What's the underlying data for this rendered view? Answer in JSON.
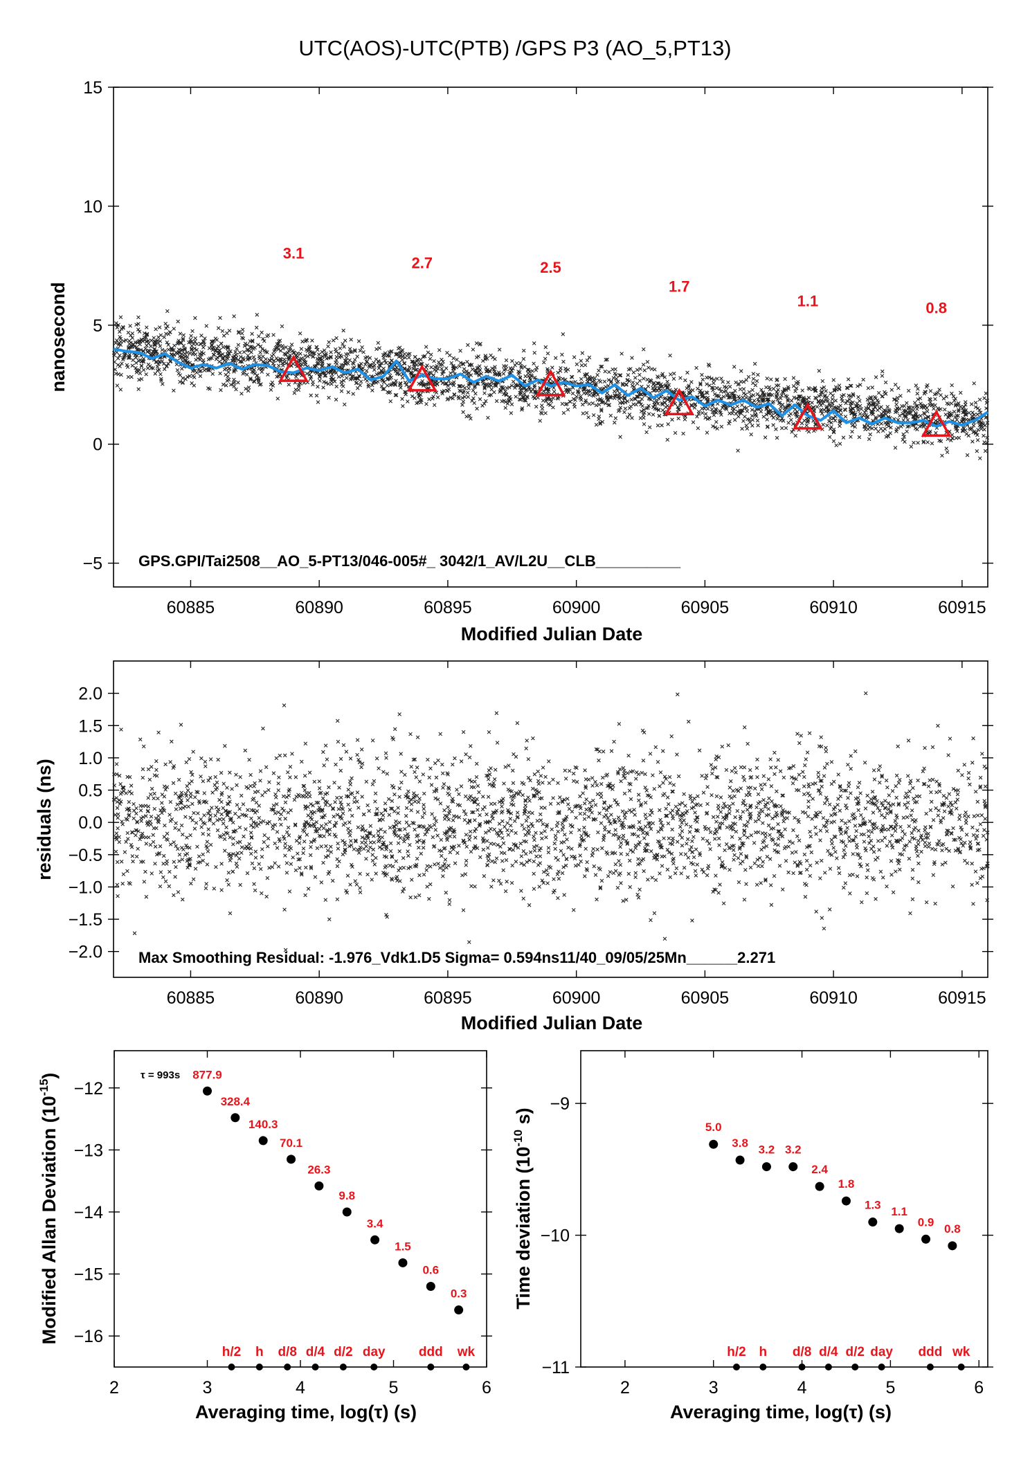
{
  "title": "UTC(AOS)-UTC(PTB)  /GPS  P3  (AO_5,PT13)",
  "chart_data": [
    {
      "type": "scatter",
      "panel": "clock-difference",
      "xlabel": "Modified Julian Date",
      "ylabel": "nanosecond",
      "xlim": [
        60882,
        60916
      ],
      "ylim": [
        -6,
        15
      ],
      "xticks": [
        60885,
        60890,
        60895,
        60900,
        60905,
        60910,
        60915
      ],
      "yticks": [
        -5,
        0,
        5,
        10,
        15
      ],
      "annotation": "GPS.GPI/Tai2508__AO_5-PT13/046-005#_  3042/1_AV/L2U__CLB__________",
      "raw_points": {
        "name": "",
        "x_range": [
          60882,
          60916
        ],
        "start": 4.0,
        "end": 0.9,
        "spread": 0.6,
        "points_per_day": 90
      },
      "smoothed_line": {
        "name": "",
        "color": "#1e90e6",
        "x": [
          60882.0,
          60882.5,
          60883.0,
          60883.5,
          60884.0,
          60884.5,
          60885.0,
          60885.5,
          60886.0,
          60886.5,
          60887.0,
          60887.5,
          60888.0,
          60888.5,
          60889.0,
          60889.5,
          60890.0,
          60890.5,
          60891.0,
          60891.5,
          60892.0,
          60892.5,
          60893.0,
          60893.5,
          60894.0,
          60894.5,
          60895.0,
          60895.5,
          60896.0,
          60896.5,
          60897.0,
          60897.5,
          60898.0,
          60898.5,
          60899.0,
          60899.5,
          60900.0,
          60900.5,
          60901.0,
          60901.5,
          60902.0,
          60902.5,
          60903.0,
          60903.5,
          60904.0,
          60904.5,
          60905.0,
          60905.5,
          60906.0,
          60906.5,
          60907.0,
          60907.5,
          60908.0,
          60908.5,
          60909.0,
          60909.5,
          60910.0,
          60910.5,
          60911.0,
          60911.5,
          60912.0,
          60912.5,
          60913.0,
          60913.5,
          60914.0,
          60914.5,
          60915.0,
          60915.5,
          60916.0
        ],
        "y": [
          4.0,
          3.9,
          3.85,
          3.6,
          3.8,
          3.45,
          3.2,
          3.35,
          3.2,
          3.4,
          3.15,
          3.35,
          3.3,
          3.05,
          3.0,
          3.2,
          3.1,
          3.25,
          3.0,
          3.15,
          2.7,
          2.85,
          3.5,
          2.65,
          2.9,
          2.75,
          2.75,
          2.95,
          2.6,
          2.85,
          2.65,
          2.9,
          2.45,
          2.7,
          2.45,
          2.6,
          2.45,
          2.5,
          2.15,
          2.5,
          2.05,
          2.35,
          1.95,
          2.25,
          1.85,
          2.0,
          1.6,
          1.85,
          1.65,
          1.85,
          1.55,
          1.7,
          1.2,
          1.65,
          1.2,
          1.0,
          1.4,
          0.9,
          1.1,
          0.85,
          1.1,
          0.9,
          0.9,
          1.0,
          0.75,
          0.95,
          0.8,
          1.0,
          1.35
        ]
      },
      "markers": {
        "type": "triangle",
        "color": "#e8141b",
        "x": [
          60889,
          60894,
          60899,
          60904,
          60909,
          60914
        ],
        "y": [
          3.1,
          2.7,
          2.5,
          1.7,
          1.1,
          0.8
        ],
        "labels": [
          "3.1",
          "2.7",
          "2.5",
          "1.7",
          "1.1",
          "0.8"
        ],
        "label_y": [
          7.8,
          7.4,
          7.2,
          6.4,
          5.8,
          5.5
        ]
      }
    },
    {
      "type": "scatter",
      "panel": "residuals",
      "xlabel": "Modified Julian Date",
      "ylabel": "residuals (ns)",
      "xlim": [
        60882,
        60916
      ],
      "ylim": [
        -2.4,
        2.5
      ],
      "xticks": [
        60885,
        60890,
        60895,
        60900,
        60905,
        60910,
        60915
      ],
      "yticks": [
        -2.0,
        -1.5,
        -1.0,
        -0.5,
        0.0,
        0.5,
        1.0,
        1.5,
        2.0
      ],
      "ytick_labels": [
        "−2.0",
        "−1.5",
        "−1.0",
        "−0.5",
        "0.0",
        "0.5",
        "1.0",
        "1.5",
        "2.0"
      ],
      "annotation": "Max Smoothing Residual: -1.976_Vdk1.D5  Sigma= 0.594ns11/40_09/05/25Mn______2.271",
      "sigma": 0.594,
      "max_residual": -1.976
    },
    {
      "type": "scatter",
      "panel": "modified-allan-deviation",
      "xlabel": "Averaging time, log(τ) (s)",
      "ylabel_main": "Modified Allan Deviation (10",
      "ylabel_sup": "-15",
      "ylabel_tail": ")",
      "xlim": [
        2,
        6
      ],
      "ylim": [
        -16.5,
        -11.4
      ],
      "xticks": [
        2,
        3,
        4,
        5,
        6
      ],
      "yticks": [
        -16,
        -15,
        -14,
        -13,
        -12
      ],
      "ytick_labels": [
        "−16",
        "−15",
        "−14",
        "−13",
        "−12"
      ],
      "tau_note": "τ = 993s",
      "x": [
        3.0,
        3.3,
        3.6,
        3.9,
        4.2,
        4.5,
        4.8,
        5.1,
        5.4,
        5.7
      ],
      "y": [
        -12.05,
        -12.48,
        -12.85,
        -13.15,
        -13.58,
        -14.0,
        -14.45,
        -14.82,
        -15.2,
        -15.58
      ],
      "labels": [
        "877.9",
        "328.4",
        "140.3",
        "70.1",
        "26.3",
        "9.8",
        "3.4",
        "1.5",
        "0.6",
        "0.3"
      ],
      "label_y": [
        -11.85,
        -12.28,
        -12.65,
        -12.95,
        -13.38,
        -13.8,
        -14.25,
        -14.62,
        -15.0,
        -15.38
      ],
      "time_marks": {
        "x": [
          3.26,
          3.56,
          3.86,
          4.16,
          4.46,
          4.79,
          5.4,
          5.78
        ],
        "labels": [
          "h/2",
          "h",
          "d/8",
          "d/4",
          "d/2",
          "day",
          "ddd",
          "wk"
        ]
      }
    },
    {
      "type": "scatter",
      "panel": "time-deviation",
      "xlabel": "Averaging time, log(τ) (s)",
      "ylabel_main": "Time deviation (10",
      "ylabel_sup": "-10",
      "ylabel_tail": " s)",
      "xlim": [
        1.5,
        6.1
      ],
      "ylim": [
        -11,
        -8.6
      ],
      "xticks": [
        2,
        3,
        4,
        5,
        6
      ],
      "yticks": [
        -11,
        -10,
        -9
      ],
      "ytick_labels": [
        "−11",
        "−10",
        "−9"
      ],
      "x": [
        3.0,
        3.3,
        3.6,
        3.9,
        4.2,
        4.5,
        4.8,
        5.1,
        5.4,
        5.7
      ],
      "y": [
        -9.31,
        -9.43,
        -9.48,
        -9.48,
        -9.63,
        -9.74,
        -9.9,
        -9.95,
        -10.03,
        -10.08
      ],
      "labels": [
        "5.0",
        "3.8",
        "3.2",
        "3.2",
        "2.4",
        "1.8",
        "1.3",
        "1.1",
        "0.9",
        "0.8"
      ],
      "label_y": [
        -9.21,
        -9.33,
        -9.38,
        -9.38,
        -9.53,
        -9.64,
        -9.8,
        -9.85,
        -9.93,
        -9.98
      ],
      "time_marks": {
        "x": [
          3.26,
          3.56,
          4.0,
          4.3,
          4.6,
          4.9,
          5.45,
          5.8
        ],
        "labels": [
          "h/2",
          "h",
          "d/8",
          "d/4",
          "d/2",
          "day",
          "ddd",
          "wk"
        ]
      }
    }
  ]
}
